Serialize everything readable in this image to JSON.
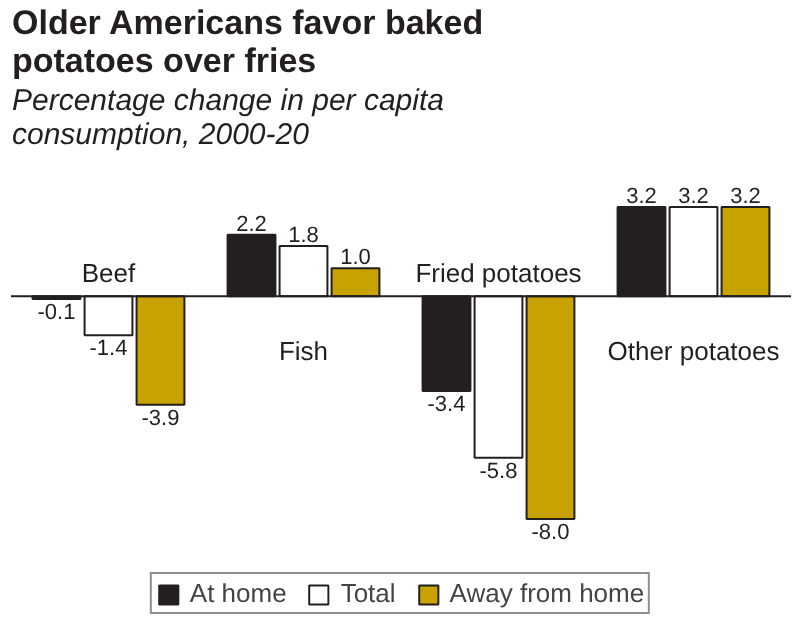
{
  "chart_data": {
    "type": "bar",
    "title": "Older Americans favor baked potatoes over fries",
    "subtitle": "Percentage change in per capita consumption, 2000-20",
    "categories": [
      "Beef",
      "Fish",
      "Fried potatoes",
      "Other potatoes"
    ],
    "series": [
      {
        "name": "At home",
        "color": "#231f20",
        "values": [
          -0.1,
          2.2,
          -3.4,
          3.2
        ]
      },
      {
        "name": "Total",
        "color": "#ffffff",
        "values": [
          -1.4,
          1.8,
          -5.8,
          3.2
        ]
      },
      {
        "name": "Away from home",
        "color": "#c8a200",
        "values": [
          -3.9,
          1.0,
          -8.0,
          3.2
        ],
        "value_labels": [
          "-3.9",
          "1.0",
          "-8.0",
          "3.2"
        ]
      }
    ],
    "data_labels": true,
    "legend": "bottom",
    "grid": false
  }
}
